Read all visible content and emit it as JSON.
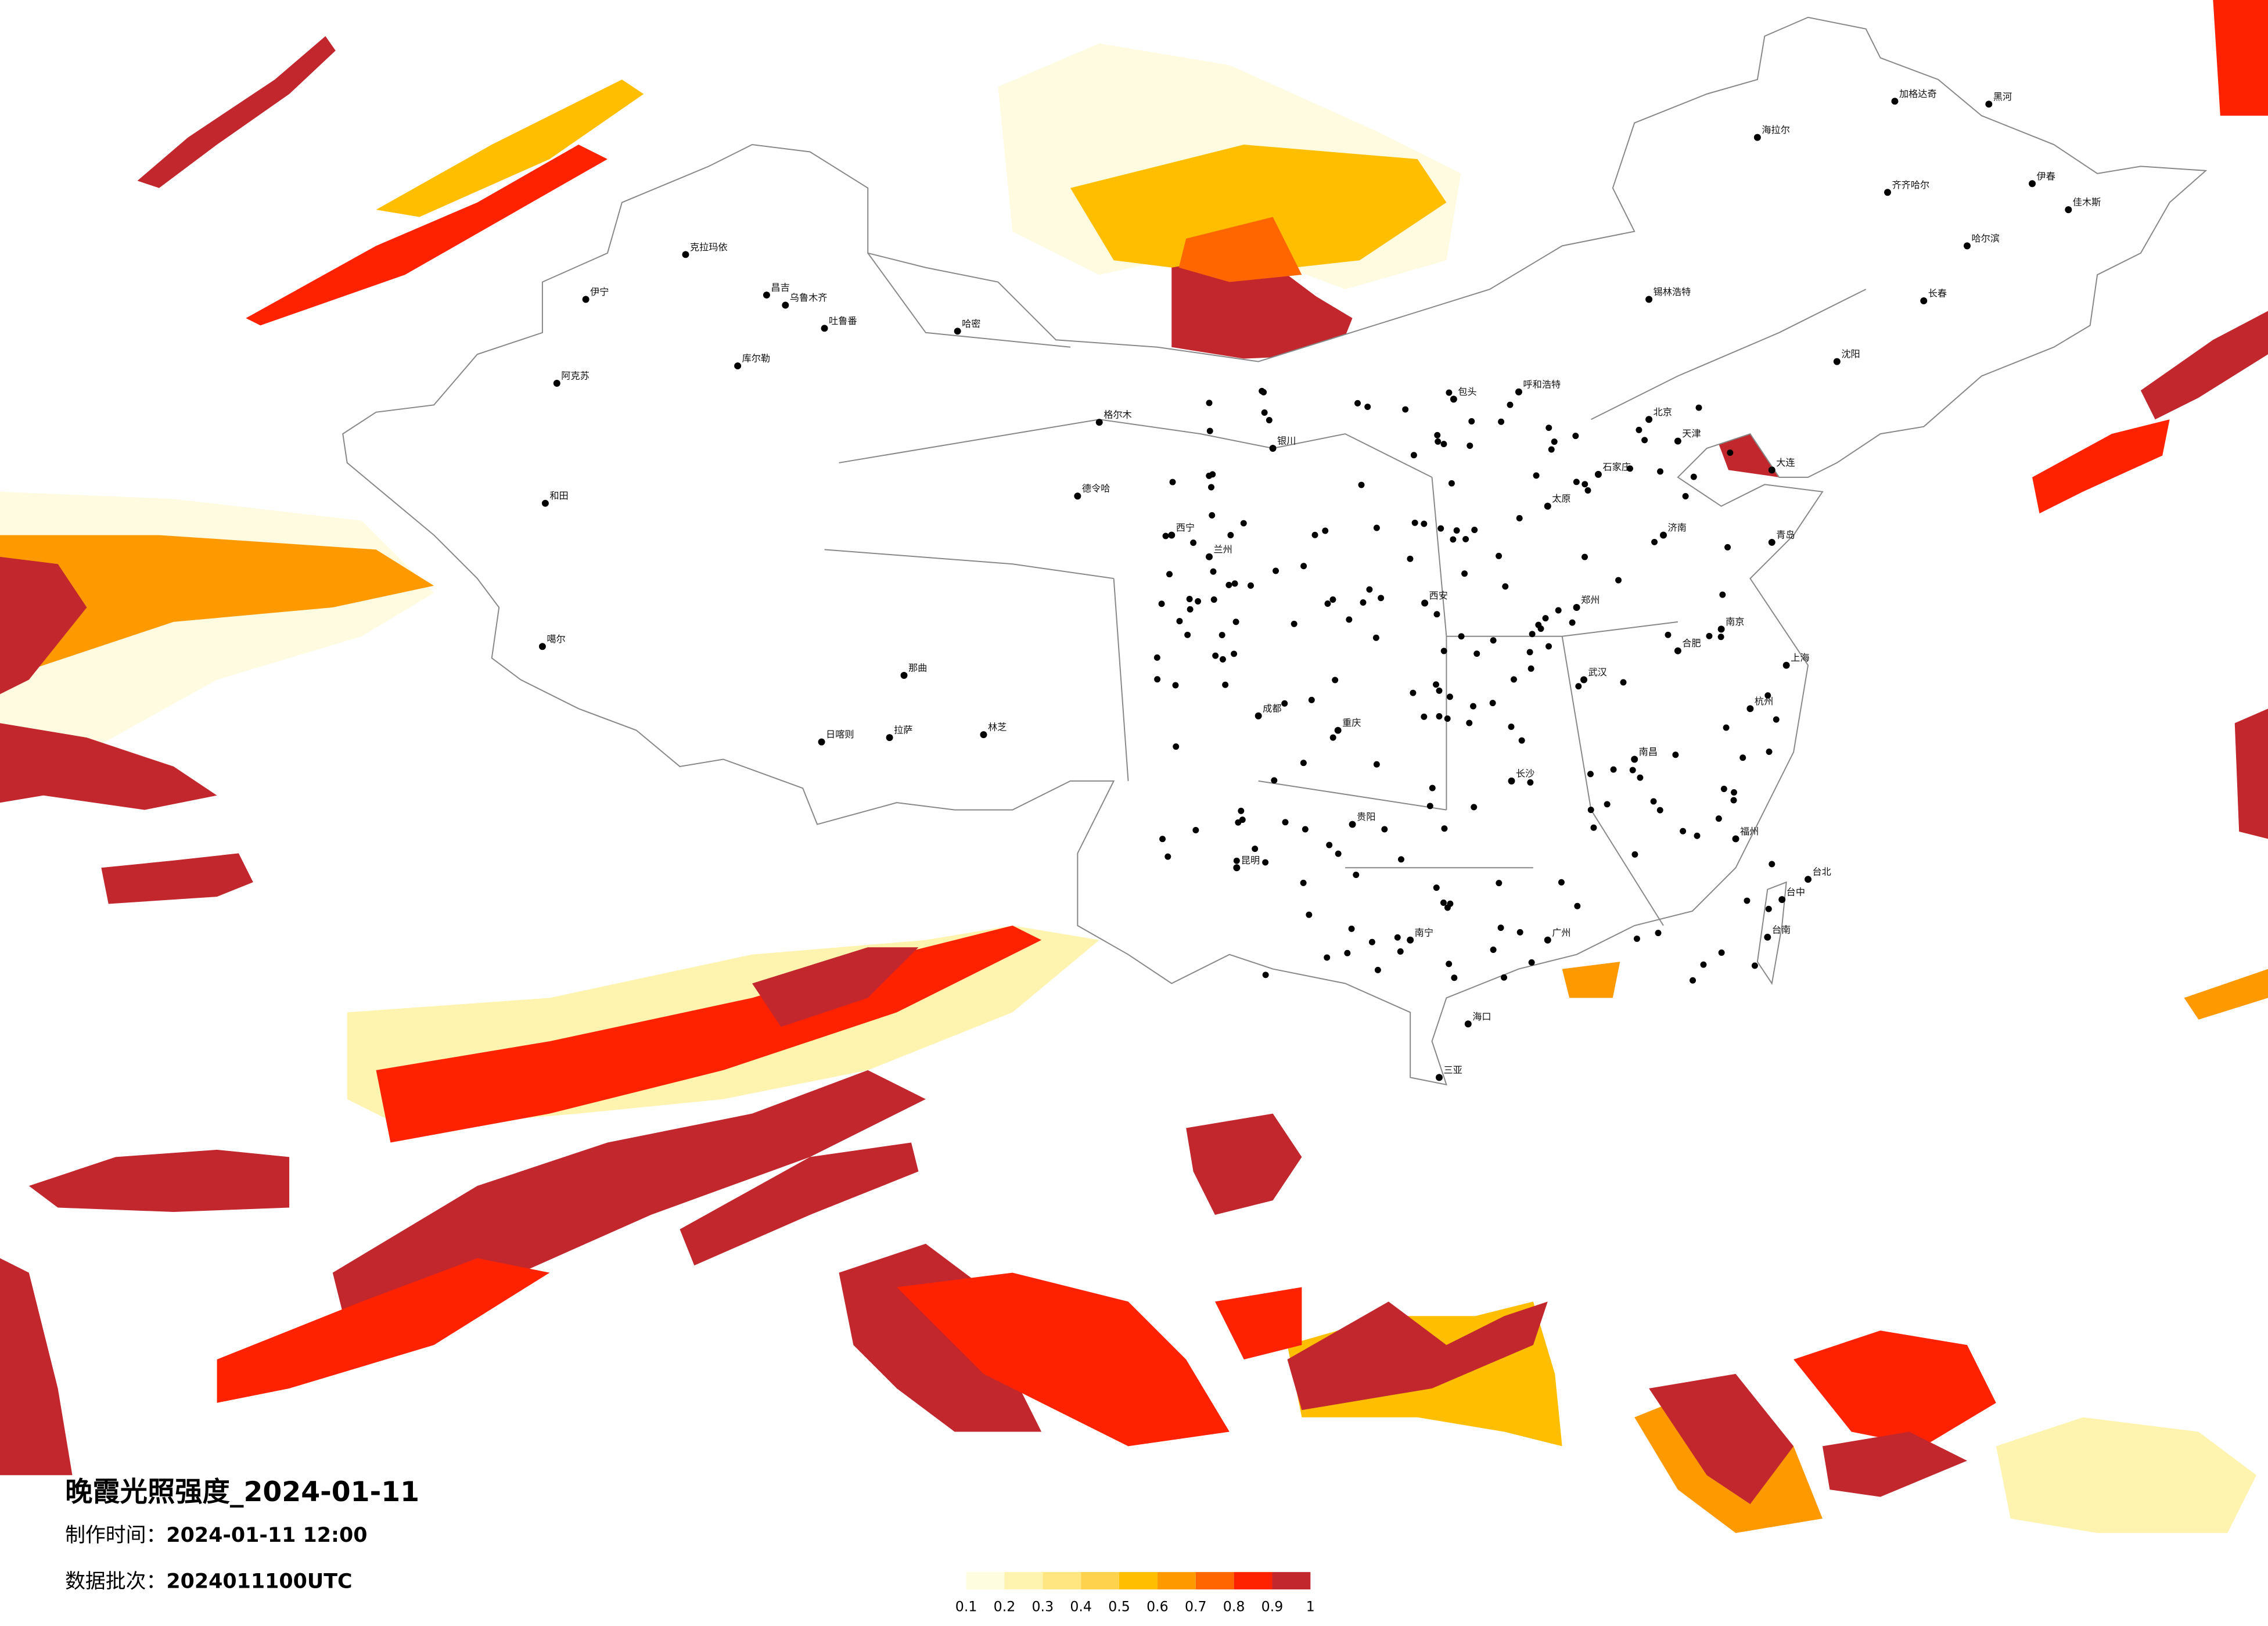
{
  "title": "晚霞光照强度_2024-01-11",
  "made_time": {
    "label": "制作时间：",
    "value": "2024-01-11 12:00"
  },
  "batch": {
    "label": "数据批次：",
    "value": "2024011100UTC"
  },
  "legend": {
    "ticks": [
      0.1,
      0.2,
      0.3,
      0.4,
      0.5,
      0.6,
      0.7,
      0.8,
      0.9,
      1
    ],
    "colors": [
      "#fffde0",
      "#fff3b0",
      "#ffe680",
      "#ffd24d",
      "#ffbf00",
      "#ff9900",
      "#ff6600",
      "#ff2200",
      "#c1272d"
    ]
  },
  "cities": [
    "克拉玛依",
    "伊宁",
    "昌吉",
    "乌鲁木齐",
    "吐鲁番",
    "哈密",
    "库尔勒",
    "阿克苏",
    "和田",
    "噶尔",
    "日喀则",
    "拉萨",
    "那曲",
    "林芝",
    "格尔木",
    "德令哈",
    "西宁",
    "兰州",
    "银川",
    "呼和浩特",
    "包头",
    "北京",
    "天津",
    "石家庄",
    "太原",
    "郑州",
    "西安",
    "成都",
    "重庆",
    "贵阳",
    "昆明",
    "南宁",
    "广州",
    "长沙",
    "武汉",
    "南昌",
    "合肥",
    "南京",
    "上海",
    "杭州",
    "福州",
    "济南",
    "沈阳",
    "长春",
    "哈尔滨",
    "海拉尔",
    "齐齐哈尔",
    "加格达奇",
    "锡林浩特",
    "海口",
    "三亚",
    "台北",
    "台中",
    "台南",
    "黑河",
    "伊春",
    "佳木斯",
    "大连",
    "青岛"
  ]
}
